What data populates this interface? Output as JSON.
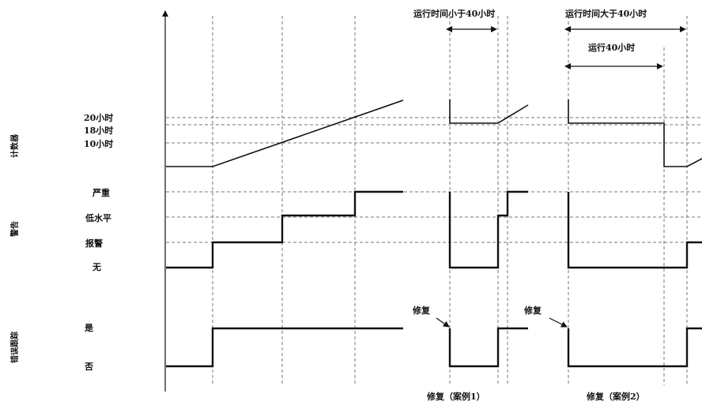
{
  "sections": {
    "counter": "计数器",
    "alert": "警告",
    "error_trace": "错误跟踪"
  },
  "counter_levels": {
    "h20": "20小时",
    "h18": "18小时",
    "h10": "10小时"
  },
  "alert_levels": {
    "severe": "严重",
    "low": "低水平",
    "warn": "报警",
    "none": "无"
  },
  "trace_levels": {
    "yes": "是",
    "no": "否"
  },
  "annotations": {
    "runtime_lt_40": "运行时间小于40小时",
    "runtime_gt_40": "运行时间大于40小时",
    "run_40": "运行40小时",
    "repair_1": "修复",
    "repair_2": "修复"
  },
  "captions": {
    "case1": "修复（案例1）",
    "case2": "修复（案例2）"
  }
}
